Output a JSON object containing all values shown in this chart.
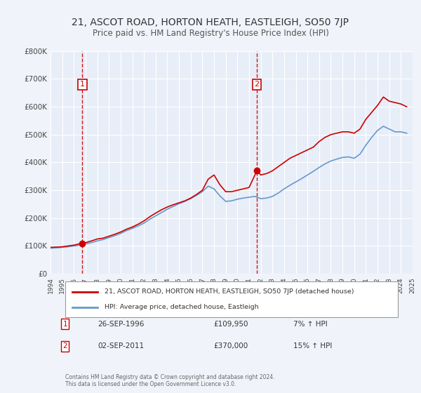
{
  "title": "21, ASCOT ROAD, HORTON HEATH, EASTLEIGH, SO50 7JP",
  "subtitle": "Price paid vs. HM Land Registry's House Price Index (HPI)",
  "background_color": "#f0f4fa",
  "plot_bg_color": "#e8eef8",
  "grid_color": "#ffffff",
  "xmin": 1994,
  "xmax": 2025,
  "ymin": 0,
  "ymax": 800000,
  "yticks": [
    0,
    100000,
    200000,
    300000,
    400000,
    500000,
    600000,
    700000,
    800000
  ],
  "ytick_labels": [
    "£0",
    "£100K",
    "£200K",
    "£300K",
    "£400K",
    "£500K",
    "£600K",
    "£700K",
    "£800K"
  ],
  "xticks": [
    1994,
    1995,
    1996,
    1997,
    1998,
    1999,
    2000,
    2001,
    2002,
    2003,
    2004,
    2005,
    2006,
    2007,
    2008,
    2009,
    2010,
    2011,
    2012,
    2013,
    2014,
    2015,
    2016,
    2017,
    2018,
    2019,
    2020,
    2021,
    2022,
    2023,
    2024,
    2025
  ],
  "red_line_color": "#cc0000",
  "blue_line_color": "#6699cc",
  "marker_color": "#cc0000",
  "vline_color": "#cc0000",
  "sale1_x": 1996.73,
  "sale1_y": 109950,
  "sale1_label": "1",
  "sale2_x": 2011.67,
  "sale2_y": 370000,
  "sale2_label": "2",
  "legend_red_label": "21, ASCOT ROAD, HORTON HEATH, EASTLEIGH, SO50 7JP (detached house)",
  "legend_blue_label": "HPI: Average price, detached house, Eastleigh",
  "table_row1": [
    "1",
    "26-SEP-1996",
    "£109,950",
    "7% ↑ HPI"
  ],
  "table_row2": [
    "2",
    "02-SEP-2011",
    "£370,000",
    "15% ↑ HPI"
  ],
  "footnote": "Contains HM Land Registry data © Crown copyright and database right 2024.\nThis data is licensed under the Open Government Licence v3.0.",
  "red_series_x": [
    1994.0,
    1994.5,
    1995.0,
    1995.5,
    1996.0,
    1996.73,
    1997.0,
    1997.5,
    1998.0,
    1998.5,
    1999.0,
    1999.5,
    2000.0,
    2000.5,
    2001.0,
    2001.5,
    2002.0,
    2002.5,
    2003.0,
    2003.5,
    2004.0,
    2004.5,
    2005.0,
    2005.5,
    2006.0,
    2006.5,
    2007.0,
    2007.5,
    2008.0,
    2008.5,
    2009.0,
    2009.5,
    2010.0,
    2010.5,
    2011.0,
    2011.67,
    2012.0,
    2012.5,
    2013.0,
    2013.5,
    2014.0,
    2014.5,
    2015.0,
    2015.5,
    2016.0,
    2016.5,
    2017.0,
    2017.5,
    2018.0,
    2018.5,
    2019.0,
    2019.5,
    2020.0,
    2020.5,
    2021.0,
    2021.5,
    2022.0,
    2022.5,
    2023.0,
    2023.5,
    2024.0,
    2024.5
  ],
  "red_series_y": [
    95000,
    96000,
    97000,
    100000,
    103000,
    109950,
    112000,
    118000,
    125000,
    128000,
    135000,
    142000,
    150000,
    160000,
    168000,
    178000,
    190000,
    205000,
    218000,
    230000,
    240000,
    248000,
    255000,
    262000,
    272000,
    285000,
    300000,
    340000,
    355000,
    320000,
    295000,
    295000,
    300000,
    305000,
    310000,
    370000,
    355000,
    360000,
    370000,
    385000,
    400000,
    415000,
    425000,
    435000,
    445000,
    455000,
    475000,
    490000,
    500000,
    505000,
    510000,
    510000,
    505000,
    520000,
    555000,
    580000,
    605000,
    635000,
    620000,
    615000,
    610000,
    600000
  ],
  "blue_series_x": [
    1994.0,
    1994.5,
    1995.0,
    1995.5,
    1996.0,
    1996.5,
    1997.0,
    1997.5,
    1998.0,
    1998.5,
    1999.0,
    1999.5,
    2000.0,
    2000.5,
    2001.0,
    2001.5,
    2002.0,
    2002.5,
    2003.0,
    2003.5,
    2004.0,
    2004.5,
    2005.0,
    2005.5,
    2006.0,
    2006.5,
    2007.0,
    2007.5,
    2008.0,
    2008.5,
    2009.0,
    2009.5,
    2010.0,
    2010.5,
    2011.0,
    2011.5,
    2012.0,
    2012.5,
    2013.0,
    2013.5,
    2014.0,
    2014.5,
    2015.0,
    2015.5,
    2016.0,
    2016.5,
    2017.0,
    2017.5,
    2018.0,
    2018.5,
    2019.0,
    2019.5,
    2020.0,
    2020.5,
    2021.0,
    2021.5,
    2022.0,
    2022.5,
    2023.0,
    2023.5,
    2024.0,
    2024.5
  ],
  "blue_series_y": [
    92000,
    93000,
    95000,
    97000,
    100000,
    103000,
    107000,
    112000,
    118000,
    123000,
    130000,
    137000,
    145000,
    155000,
    163000,
    172000,
    182000,
    196000,
    208000,
    220000,
    232000,
    242000,
    252000,
    260000,
    270000,
    282000,
    295000,
    315000,
    305000,
    280000,
    260000,
    262000,
    268000,
    272000,
    275000,
    278000,
    270000,
    272000,
    278000,
    290000,
    305000,
    318000,
    330000,
    342000,
    355000,
    368000,
    382000,
    395000,
    405000,
    412000,
    418000,
    420000,
    415000,
    430000,
    462000,
    490000,
    515000,
    530000,
    520000,
    510000,
    510000,
    505000
  ]
}
